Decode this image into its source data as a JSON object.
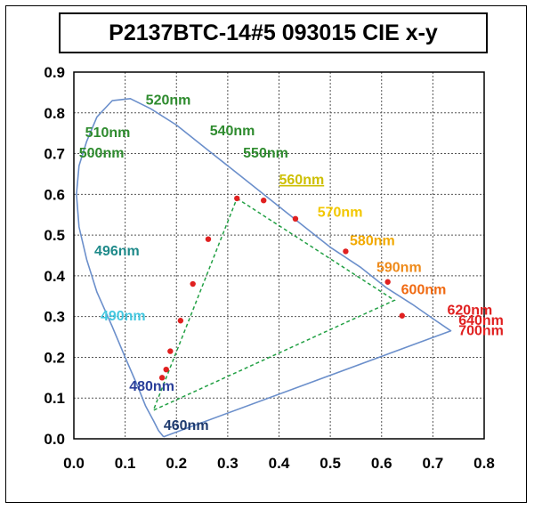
{
  "chart_data": {
    "type": "scatter",
    "title": "P2137BTC-14#5 093015 CIE x-y",
    "xlabel": "",
    "ylabel": "",
    "xlim": [
      0.0,
      0.8
    ],
    "ylim": [
      0.0,
      0.9
    ],
    "x_ticks": [
      "0.0",
      "0.1",
      "0.2",
      "0.3",
      "0.4",
      "0.5",
      "0.6",
      "0.7",
      "0.8"
    ],
    "y_ticks": [
      "0.0",
      "0.1",
      "0.2",
      "0.3",
      "0.4",
      "0.5",
      "0.6",
      "0.7",
      "0.8",
      "0.9"
    ],
    "grid": true,
    "spectral_locus": {
      "color": "#6b8fcb",
      "points": [
        [
          0.175,
          0.005
        ],
        [
          0.165,
          0.02
        ],
        [
          0.155,
          0.045
        ],
        [
          0.14,
          0.08
        ],
        [
          0.124,
          0.13
        ],
        [
          0.1,
          0.2
        ],
        [
          0.075,
          0.275
        ],
        [
          0.045,
          0.36
        ],
        [
          0.025,
          0.44
        ],
        [
          0.01,
          0.52
        ],
        [
          0.005,
          0.6
        ],
        [
          0.01,
          0.67
        ],
        [
          0.025,
          0.73
        ],
        [
          0.045,
          0.79
        ],
        [
          0.075,
          0.83
        ],
        [
          0.11,
          0.835
        ],
        [
          0.15,
          0.81
        ],
        [
          0.2,
          0.77
        ],
        [
          0.26,
          0.71
        ],
        [
          0.32,
          0.65
        ],
        [
          0.38,
          0.59
        ],
        [
          0.44,
          0.53
        ],
        [
          0.5,
          0.47
        ],
        [
          0.56,
          0.42
        ],
        [
          0.61,
          0.37
        ],
        [
          0.66,
          0.33
        ],
        [
          0.7,
          0.295
        ],
        [
          0.735,
          0.265
        ],
        [
          0.175,
          0.005
        ]
      ]
    },
    "gamut_triangle": {
      "color": "#22a044",
      "points": [
        [
          0.318,
          0.59
        ],
        [
          0.625,
          0.34
        ],
        [
          0.155,
          0.07
        ]
      ]
    },
    "series": [
      {
        "color": "#e02020",
        "points": [
          [
            0.172,
            0.15
          ],
          [
            0.18,
            0.17
          ],
          [
            0.188,
            0.215
          ],
          [
            0.208,
            0.29
          ],
          [
            0.232,
            0.38
          ],
          [
            0.262,
            0.49
          ],
          [
            0.318,
            0.59
          ],
          [
            0.37,
            0.585
          ],
          [
            0.432,
            0.54
          ],
          [
            0.53,
            0.46
          ],
          [
            0.612,
            0.385
          ],
          [
            0.64,
            0.302
          ]
        ]
      }
    ],
    "wavelength_labels": [
      {
        "text": "520nm",
        "x": 0.14,
        "y": 0.82,
        "color": "#2e8b2e"
      },
      {
        "text": "510nm",
        "x": 0.022,
        "y": 0.74,
        "color": "#2e8b2e"
      },
      {
        "text": "500nm",
        "x": 0.01,
        "y": 0.69,
        "color": "#2e8b2e"
      },
      {
        "text": "540nm",
        "x": 0.265,
        "y": 0.745,
        "color": "#2e8b2e"
      },
      {
        "text": "550nm",
        "x": 0.33,
        "y": 0.69,
        "color": "#2e8b2e"
      },
      {
        "text": "560nm",
        "x": 0.4,
        "y": 0.625,
        "color": "#cdbf00",
        "underline": true
      },
      {
        "text": "570nm",
        "x": 0.475,
        "y": 0.545,
        "color": "#f2c700"
      },
      {
        "text": "580nm",
        "x": 0.538,
        "y": 0.475,
        "color": "#f2a900"
      },
      {
        "text": "590nm",
        "x": 0.59,
        "y": 0.41,
        "color": "#ee8a1a"
      },
      {
        "text": "600nm",
        "x": 0.638,
        "y": 0.355,
        "color": "#f06a12"
      },
      {
        "text": "620nm",
        "x": 0.728,
        "y": 0.305,
        "color": "#e02020"
      },
      {
        "text": "640nm",
        "x": 0.75,
        "y": 0.28,
        "color": "#e02020"
      },
      {
        "text": "700nm",
        "x": 0.75,
        "y": 0.255,
        "color": "#e02020"
      },
      {
        "text": "496nm",
        "x": 0.04,
        "y": 0.45,
        "color": "#1f8a8a"
      },
      {
        "text": "490nm",
        "x": 0.052,
        "y": 0.29,
        "color": "#45c8e0"
      },
      {
        "text": "480nm",
        "x": 0.108,
        "y": 0.118,
        "color": "#2a3f9a"
      },
      {
        "text": "460nm",
        "x": 0.175,
        "y": 0.022,
        "color": "#1e3a6e"
      }
    ]
  }
}
